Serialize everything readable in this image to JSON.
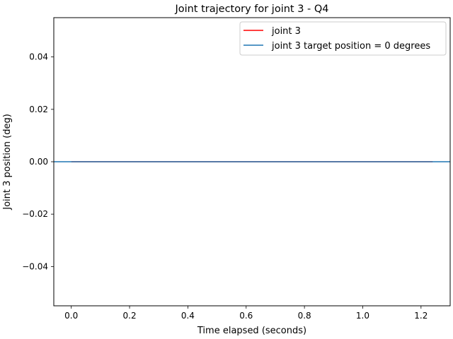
{
  "chart_data": {
    "type": "line",
    "title": "Joint trajectory for joint 3 - Q4",
    "xlabel": "Time elapsed (seconds)",
    "ylabel": "Joint 3 position (deg)",
    "xlim": [
      -0.06,
      1.3
    ],
    "ylim": [
      -0.055,
      0.055
    ],
    "xticks": [
      0.0,
      0.2,
      0.4,
      0.6,
      0.8,
      1.0,
      1.2
    ],
    "xtick_labels": [
      "0.0",
      "0.2",
      "0.4",
      "0.6",
      "0.8",
      "1.0",
      "1.2"
    ],
    "yticks": [
      -0.04,
      -0.02,
      0.0,
      0.02,
      0.04
    ],
    "ytick_labels": [
      "−0.04",
      "−0.02",
      "0.00",
      "0.02",
      "0.04"
    ],
    "grid": false,
    "legend_position": "top-right",
    "series": [
      {
        "name": "joint 3",
        "color": "#ff0000",
        "x": [
          0.0,
          0.2,
          0.4,
          0.6,
          0.8,
          1.0,
          1.24
        ],
        "y": [
          0,
          0,
          0,
          0,
          0,
          0,
          0
        ]
      },
      {
        "name": "joint 3 target position = 0 degrees",
        "color": "#1f77b4",
        "kind": "axhline",
        "y": 0
      }
    ]
  }
}
